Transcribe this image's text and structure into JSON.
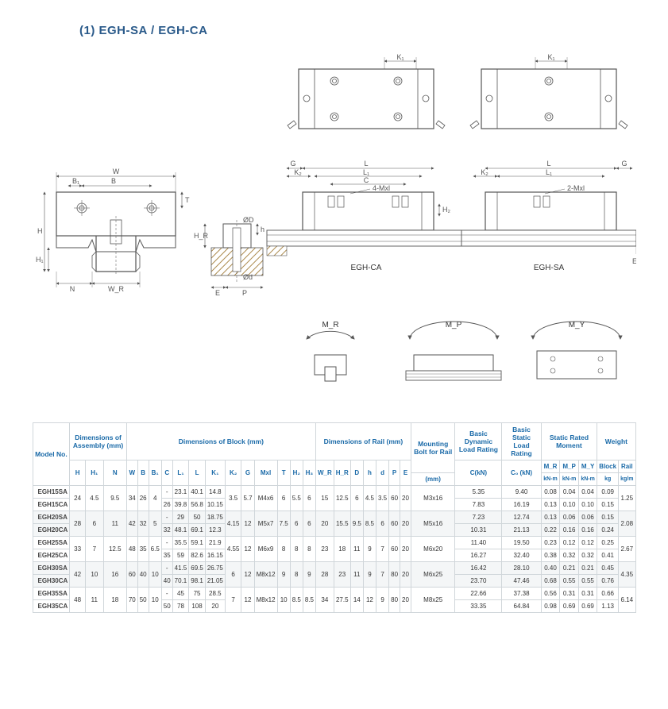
{
  "title": "(1) EGH-SA / EGH-CA",
  "diagram_labels": {
    "K1": "K₁",
    "W": "W",
    "B1": "B₁",
    "B": "B",
    "H": "H",
    "H1": "H₁",
    "T": "T",
    "N": "N",
    "WR": "W_R",
    "HR": "H_R",
    "h": "h",
    "E": "E",
    "P": "P",
    "OD": "ØD",
    "Od": "Ød",
    "G": "G",
    "L": "L",
    "L1": "L₁",
    "C": "C",
    "K2": "K₂",
    "H2": "H₂",
    "fourMxl": "4-Mxl",
    "twoMxl": "2-Mxl",
    "EGH_CA": "EGH-CA",
    "EGH_SA": "EGH-SA",
    "MR": "M_R",
    "MP": "M_P",
    "MY": "M_Y"
  },
  "table": {
    "headers": {
      "model_no": "Model No.",
      "dim_assembly": "Dimensions of Assembly (mm)",
      "dim_block": "Dimensions of Block (mm)",
      "dim_rail": "Dimensions of Rail (mm)",
      "mount_bolt": "Mounting Bolt for Rail",
      "dyn_load": "Basic Dynamic Load Rating",
      "stat_load": "Basic Static Load Rating",
      "stat_moment": "Static Rated Moment",
      "weight": "Weight",
      "H": "H",
      "H1": "H₁",
      "N": "N",
      "W": "W",
      "B": "B",
      "B1": "B₁",
      "C": "C",
      "L1": "L₁",
      "L": "L",
      "K1": "K₁",
      "K2": "K₂",
      "G": "G",
      "Mxl": "Mxl",
      "T": "T",
      "H2": "H₂",
      "H3": "H₃",
      "WR": "W_R",
      "HR": "H_R",
      "D": "D",
      "hh": "h",
      "dd": "d",
      "P": "P",
      "E": "E",
      "mm": "(mm)",
      "CkN": "C(kN)",
      "CokN": "C₀ (kN)",
      "MR": "M_R",
      "MPc": "M_P",
      "MYc": "M_Y",
      "kNm": "kN-m",
      "Block": "Block",
      "Rail": "Rail",
      "kg": "kg",
      "kgm": "kg/m"
    },
    "rows": [
      {
        "model": "EGH15SA",
        "H": "24",
        "H1": "4.5",
        "N": "9.5",
        "W": "34",
        "B": "26",
        "B1": "4",
        "C": "-",
        "L1": "23.1",
        "L": "40.1",
        "K1": "14.8",
        "K2": "3.5",
        "G": "5.7",
        "Mxl": "M4x6",
        "T": "6",
        "H2": "5.5",
        "H3": "6",
        "WR": "15",
        "HR": "12.5",
        "D": "6",
        "hh": "4.5",
        "dd": "3.5",
        "P": "60",
        "E": "20",
        "bolt": "M3x16",
        "CkN": "5.35",
        "CokN": "9.40",
        "MR": "0.08",
        "MP": "0.04",
        "MY": "0.04",
        "Block": "0.09",
        "Rail": "1.25",
        "span_assembly": true,
        "span_block_tail": true,
        "span_rail": true,
        "span_bolt": true,
        "span_railwt": true
      },
      {
        "model": "EGH15CA",
        "C": "26",
        "L1": "39.8",
        "L": "56.8",
        "K1": "10.15",
        "CkN": "7.83",
        "CokN": "16.19",
        "MR": "0.13",
        "MP": "0.10",
        "MY": "0.10",
        "Block": "0.15"
      },
      {
        "model": "EGH20SA",
        "H": "28",
        "H1": "6",
        "N": "11",
        "W": "42",
        "B": "32",
        "B1": "5",
        "C": "-",
        "L1": "29",
        "L": "50",
        "K1": "18.75",
        "K2": "4.15",
        "G": "12",
        "Mxl": "M5x7",
        "T": "7.5",
        "H2": "6",
        "H3": "6",
        "WR": "20",
        "HR": "15.5",
        "D": "9.5",
        "hh": "8.5",
        "dd": "6",
        "P": "60",
        "E": "20",
        "bolt": "M5x16",
        "CkN": "7.23",
        "CokN": "12.74",
        "MR": "0.13",
        "MP": "0.06",
        "MY": "0.06",
        "Block": "0.15",
        "Rail": "2.08",
        "span_assembly": true,
        "span_block_tail": true,
        "span_rail": true,
        "span_bolt": true,
        "span_railwt": true
      },
      {
        "model": "EGH20CA",
        "C": "32",
        "L1": "48.1",
        "L": "69.1",
        "K1": "12.3",
        "CkN": "10.31",
        "CokN": "21.13",
        "MR": "0.22",
        "MP": "0.16",
        "MY": "0.16",
        "Block": "0.24"
      },
      {
        "model": "EGH25SA",
        "H": "33",
        "H1": "7",
        "N": "12.5",
        "W": "48",
        "B": "35",
        "B1": "6.5",
        "C": "-",
        "L1": "35.5",
        "L": "59.1",
        "K1": "21.9",
        "K2": "4.55",
        "G": "12",
        "Mxl": "M6x9",
        "T": "8",
        "H2": "8",
        "H3": "8",
        "WR": "23",
        "HR": "18",
        "D": "11",
        "hh": "9",
        "dd": "7",
        "P": "60",
        "E": "20",
        "bolt": "M6x20",
        "CkN": "11.40",
        "CokN": "19.50",
        "MR": "0.23",
        "MP": "0.12",
        "MY": "0.12",
        "Block": "0.25",
        "Rail": "2.67",
        "span_assembly": true,
        "span_block_tail": true,
        "span_rail": true,
        "span_bolt": true,
        "span_railwt": true
      },
      {
        "model": "EGH25CA",
        "C": "35",
        "L1": "59",
        "L": "82.6",
        "K1": "16.15",
        "CkN": "16.27",
        "CokN": "32.40",
        "MR": "0.38",
        "MP": "0.32",
        "MY": "0.32",
        "Block": "0.41"
      },
      {
        "model": "EGH30SA",
        "H": "42",
        "H1": "10",
        "N": "16",
        "W": "60",
        "B": "40",
        "B1": "10",
        "C": "-",
        "L1": "41.5",
        "L": "69.5",
        "K1": "26.75",
        "K2": "6",
        "G": "12",
        "Mxl": "M8x12",
        "T": "9",
        "H2": "8",
        "H3": "9",
        "WR": "28",
        "HR": "23",
        "D": "11",
        "hh": "9",
        "dd": "7",
        "P": "80",
        "E": "20",
        "bolt": "M6x25",
        "CkN": "16.42",
        "CokN": "28.10",
        "MR": "0.40",
        "MP": "0.21",
        "MY": "0.21",
        "Block": "0.45",
        "Rail": "4.35",
        "span_assembly": true,
        "span_block_tail": true,
        "span_rail": true,
        "span_bolt": true,
        "span_railwt": true
      },
      {
        "model": "EGH30CA",
        "C": "40",
        "L1": "70.1",
        "L": "98.1",
        "K1": "21.05",
        "CkN": "23.70",
        "CokN": "47.46",
        "MR": "0.68",
        "MP": "0.55",
        "MY": "0.55",
        "Block": "0.76"
      },
      {
        "model": "EGH35SA",
        "H": "48",
        "H1": "11",
        "N": "18",
        "W": "70",
        "B": "50",
        "B1": "10",
        "C": "-",
        "L1": "45",
        "L": "75",
        "K1": "28.5",
        "K2": "7",
        "G": "12",
        "Mxl": "M8x12",
        "T": "10",
        "H2": "8.5",
        "H3": "8.5",
        "WR": "34",
        "HR": "27.5",
        "D": "14",
        "hh": "12",
        "dd": "9",
        "P": "80",
        "E": "20",
        "bolt": "M8x25",
        "CkN": "22.66",
        "CokN": "37.38",
        "MR": "0.56",
        "MP": "0.31",
        "MY": "0.31",
        "Block": "0.66",
        "Rail": "6.14",
        "span_assembly": true,
        "span_block_tail": true,
        "span_rail": true,
        "span_bolt": true,
        "span_railwt": true
      },
      {
        "model": "EGH35CA",
        "C": "50",
        "L1": "78",
        "L": "108",
        "K1": "20",
        "CkN": "33.35",
        "CokN": "64.84",
        "MR": "0.98",
        "MP": "0.69",
        "MY": "0.69",
        "Block": "1.13"
      }
    ]
  },
  "colors": {
    "line": "#555555",
    "accent": "#1a6aa8",
    "hatch": "#aa884a",
    "light": "#d0d6da",
    "bg": "#ffffff"
  }
}
